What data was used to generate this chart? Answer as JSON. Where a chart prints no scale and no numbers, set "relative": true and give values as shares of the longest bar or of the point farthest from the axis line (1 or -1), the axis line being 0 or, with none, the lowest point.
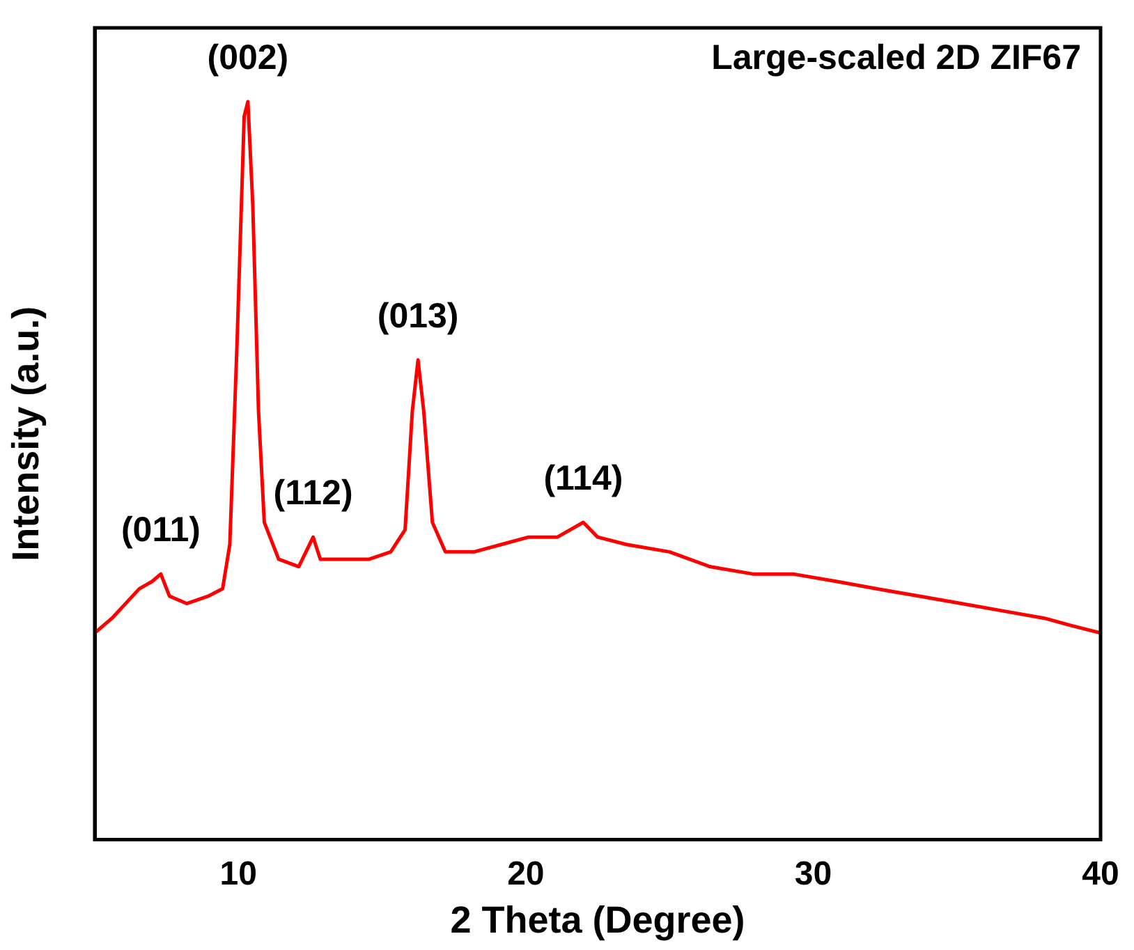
{
  "chart_data": {
    "type": "line",
    "relative": true,
    "xlabel": "2 Theta (Degree)",
    "ylabel": "Intensity (a.u.)",
    "xlim": [
      5,
      40
    ],
    "xticks": [
      10,
      20,
      30,
      40
    ],
    "grid": false,
    "legend": false,
    "marker": "none",
    "line_style": "solid",
    "annotations": [
      "Large-scaled 2D ZIF67",
      {
        "text": "(011)",
        "x": 7.3,
        "y": 0.36
      },
      {
        "text": "(002)",
        "x": 10.33,
        "y": 1.0
      },
      {
        "text": "(112)",
        "x": 12.6,
        "y": 0.41
      },
      {
        "text": "(013)",
        "x": 16.25,
        "y": 0.65
      },
      {
        "text": "(114)",
        "x": 22.0,
        "y": 0.43
      }
    ],
    "series": [
      {
        "color": "#ff0000",
        "x": [
          5.0,
          5.6,
          6.55,
          7.0,
          7.3,
          7.6,
          8.2,
          8.95,
          9.45,
          9.7,
          9.95,
          10.2,
          10.33,
          10.5,
          10.7,
          10.9,
          11.4,
          12.1,
          12.6,
          12.85,
          13.6,
          14.55,
          15.3,
          15.8,
          16.05,
          16.25,
          16.45,
          16.75,
          17.2,
          18.2,
          19.15,
          20.1,
          21.1,
          22.0,
          22.5,
          23.5,
          25.0,
          26.4,
          27.9,
          29.3,
          30.8,
          32.2,
          33.7,
          35.15,
          36.6,
          38.05,
          39.0,
          40.0
        ],
        "values": [
          0.28,
          0.3,
          0.34,
          0.35,
          0.36,
          0.33,
          0.32,
          0.33,
          0.34,
          0.4,
          0.67,
          0.98,
          1.0,
          0.86,
          0.58,
          0.43,
          0.38,
          0.37,
          0.41,
          0.38,
          0.38,
          0.38,
          0.39,
          0.42,
          0.58,
          0.65,
          0.58,
          0.43,
          0.39,
          0.39,
          0.4,
          0.41,
          0.41,
          0.43,
          0.41,
          0.4,
          0.39,
          0.37,
          0.36,
          0.36,
          0.35,
          0.34,
          0.33,
          0.32,
          0.31,
          0.3,
          0.29,
          0.28
        ]
      }
    ]
  }
}
